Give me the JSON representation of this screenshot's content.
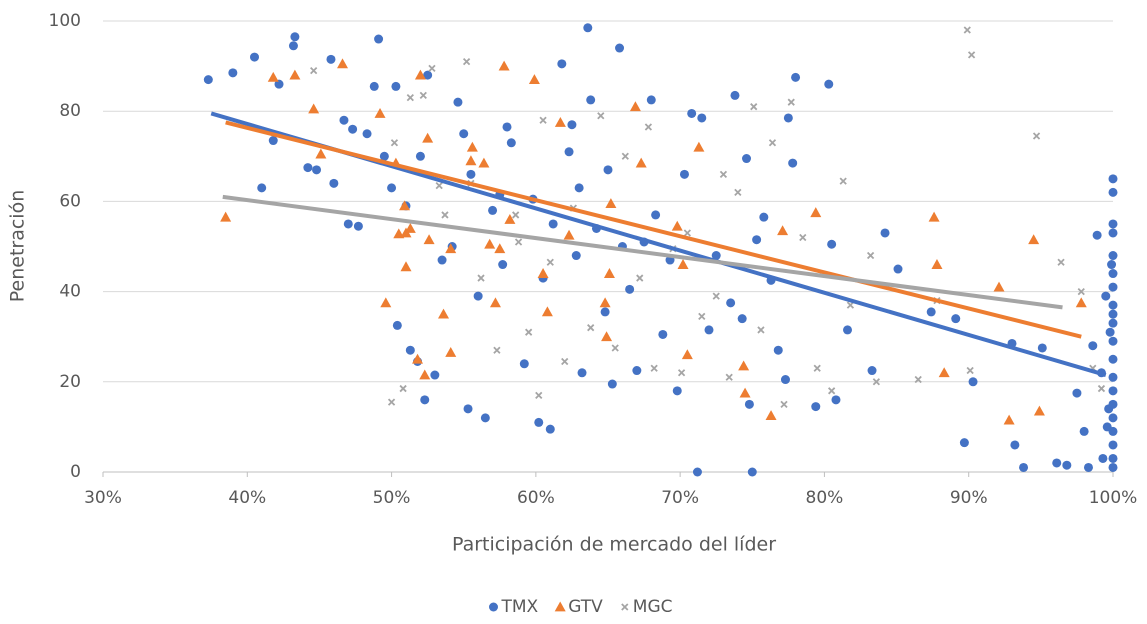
{
  "chart_data": {
    "type": "scatter",
    "x_label": "Participación de mercado del líder",
    "y_label": "Penetración",
    "xlim": [
      30,
      100
    ],
    "xticks": [
      {
        "value": 30,
        "label": "30%"
      },
      {
        "value": 40,
        "label": "40%"
      },
      {
        "value": 50,
        "label": "50%"
      },
      {
        "value": 60,
        "label": "60%"
      },
      {
        "value": 70,
        "label": "70%"
      },
      {
        "value": 80,
        "label": "80%"
      },
      {
        "value": 90,
        "label": "90%"
      },
      {
        "value": 100,
        "label": "100%"
      }
    ],
    "ylim": [
      0,
      100
    ],
    "yticks": [
      0,
      20,
      40,
      60,
      80,
      100
    ],
    "grid": true,
    "legend": "bottom",
    "series": [
      {
        "name": "TMX",
        "color": "#4472c4",
        "marker": "circle",
        "x": [
          37.3,
          39,
          40.5,
          41,
          41.8,
          42.2,
          43.2,
          43.3,
          44.2,
          44.8,
          45.8,
          46,
          46.7,
          47,
          47.3,
          47.7,
          48.3,
          48.8,
          49.1,
          49.5,
          50,
          50.3,
          50.4,
          51,
          51.3,
          51.8,
          52,
          52.3,
          52.5,
          53,
          53.5,
          54.2,
          54.6,
          55,
          55.3,
          55.5,
          56,
          56.5,
          57,
          57.5,
          57.7,
          58,
          58.3,
          59.2,
          59.8,
          60.2,
          60.5,
          61,
          61.2,
          61.8,
          62.3,
          62.5,
          62.8,
          63,
          63.2,
          63.6,
          63.8,
          64.2,
          64.8,
          65,
          65.3,
          65.8,
          66,
          66.5,
          67,
          67.5,
          68,
          68.3,
          68.8,
          69.3,
          69.8,
          70.3,
          70.8,
          71.2,
          71.5,
          72,
          72.5,
          73.5,
          73.8,
          74.3,
          74.6,
          74.8,
          75,
          75.3,
          75.8,
          76.3,
          76.8,
          77.3,
          77.5,
          77.8,
          78,
          79.4,
          80.3,
          80.5,
          80.8,
          81.6,
          83.3,
          84.2,
          85.1,
          87.4,
          89.1,
          89.7,
          90.3,
          93,
          93.2,
          93.8,
          95.1,
          96.1,
          96.8,
          97.5,
          98,
          98.3,
          98.6,
          98.9,
          99.2,
          99.3,
          99.5,
          99.6,
          99.7,
          99.8,
          99.9,
          100,
          100,
          100,
          100,
          100,
          100,
          100,
          100,
          100,
          100,
          100,
          100,
          100,
          100,
          100,
          100,
          100,
          100,
          100,
          100
        ],
        "values": [
          87,
          88.5,
          92,
          63,
          73.5,
          86,
          94.5,
          96.5,
          67.5,
          67,
          91.5,
          64,
          78,
          55,
          76,
          54.5,
          75,
          85.5,
          96,
          70,
          63,
          85.5,
          32.5,
          59,
          27,
          24.5,
          70,
          16,
          88,
          21.5,
          47,
          50,
          82,
          75,
          14,
          66,
          39,
          12,
          58,
          61.5,
          46,
          76.5,
          73,
          24,
          60.5,
          11,
          43,
          9.5,
          55,
          90.5,
          71,
          77,
          48,
          63,
          22,
          98.5,
          82.5,
          54,
          35.5,
          67,
          19.5,
          94,
          50,
          40.5,
          22.5,
          51,
          82.5,
          57,
          30.5,
          47,
          18,
          66,
          79.5,
          0,
          78.5,
          31.5,
          48,
          37.5,
          83.5,
          34,
          69.5,
          15,
          0,
          51.5,
          56.5,
          42.5,
          27,
          20.5,
          78.5,
          68.5,
          87.5,
          14.5,
          86,
          50.5,
          16,
          31.5,
          22.5,
          53,
          45,
          35.5,
          34,
          6.5,
          20,
          28.5,
          6,
          1,
          27.5,
          2,
          1.5,
          17.5,
          9,
          1,
          28,
          52.5,
          22,
          3,
          39,
          10,
          14,
          31,
          46,
          65,
          62,
          55,
          53,
          48,
          44,
          41,
          37,
          35,
          33,
          29,
          25,
          21,
          18,
          15,
          12,
          9,
          6,
          3,
          1
        ],
        "trendline": {
          "x": [
            37.5,
            99.5
          ],
          "y": [
            79.5,
            21.5
          ]
        }
      },
      {
        "name": "GTV",
        "color": "#ed7d31",
        "marker": "triangle",
        "x": [
          38.5,
          41.8,
          43.3,
          44.6,
          45.1,
          46.6,
          49.2,
          49.6,
          50.3,
          50.5,
          50.9,
          51,
          51,
          51.3,
          51.8,
          52,
          52.3,
          52.5,
          52.6,
          53.6,
          54.1,
          54.1,
          55.5,
          55.6,
          56.4,
          56.8,
          57.2,
          57.5,
          57.8,
          58.2,
          59.9,
          60.5,
          60.8,
          61.7,
          62.3,
          64.8,
          64.9,
          65.1,
          65.2,
          66.9,
          67.3,
          69.8,
          70.2,
          70.5,
          71.3,
          74.4,
          74.5,
          76.3,
          77.1,
          79.4,
          87.6,
          87.8,
          88.3,
          92.1,
          92.8,
          94.5,
          94.9,
          97.8
        ],
        "values": [
          56.5,
          87.5,
          88,
          80.5,
          70.5,
          90.5,
          79.5,
          37.5,
          68.5,
          52.8,
          59,
          53,
          45.5,
          54,
          25,
          88,
          21.5,
          74,
          51.5,
          35,
          26.5,
          49.5,
          69,
          72,
          68.5,
          50.5,
          37.5,
          49.5,
          90,
          56,
          87,
          44,
          35.5,
          77.5,
          52.5,
          37.5,
          30,
          44,
          59.5,
          81,
          68.5,
          54.5,
          46,
          26,
          72,
          23.5,
          17.5,
          12.5,
          53.5,
          57.5,
          56.5,
          46,
          22,
          41,
          11.5,
          51.5,
          13.5,
          37.5
        ],
        "trendline": {
          "x": [
            38.5,
            97.8
          ],
          "y": [
            77.5,
            30
          ]
        }
      },
      {
        "name": "MGC",
        "color": "#a5a5a5",
        "marker": "x",
        "x": [
          44.6,
          50,
          50.2,
          50.8,
          51.3,
          52.2,
          52.8,
          53.3,
          53.7,
          55.2,
          55.5,
          56.2,
          57.3,
          58.6,
          58.8,
          59.5,
          60.2,
          60.5,
          61,
          62,
          62.6,
          63.8,
          64.5,
          65.5,
          66.2,
          67.2,
          67.8,
          68.2,
          69.5,
          70.1,
          70.5,
          71.5,
          72.5,
          73,
          73.4,
          74,
          75.1,
          75.6,
          76.4,
          77.2,
          77.7,
          78.5,
          79.5,
          80.5,
          81.3,
          81.8,
          83.2,
          83.6,
          86.5,
          87.8,
          89.9,
          90.2,
          90.1,
          94.7,
          96.4,
          97.8,
          98.6,
          99.2
        ],
        "values": [
          89,
          15.5,
          73,
          18.5,
          83,
          83.5,
          89.5,
          63.5,
          57,
          91,
          64,
          43,
          27,
          57,
          51,
          31,
          17,
          78,
          46.5,
          24.5,
          58.5,
          32,
          79,
          27.5,
          70,
          43,
          76.5,
          23,
          49.5,
          22,
          53,
          34.5,
          39,
          66,
          21,
          62,
          81,
          31.5,
          73,
          15,
          82,
          52,
          23,
          18,
          64.5,
          37,
          48,
          20,
          20.5,
          38,
          98,
          92.5,
          22.5,
          74.5,
          46.5,
          40,
          23,
          18.5
        ],
        "trendline": {
          "x": [
            38.3,
            96.5
          ],
          "y": [
            61,
            36.5
          ]
        }
      }
    ]
  }
}
